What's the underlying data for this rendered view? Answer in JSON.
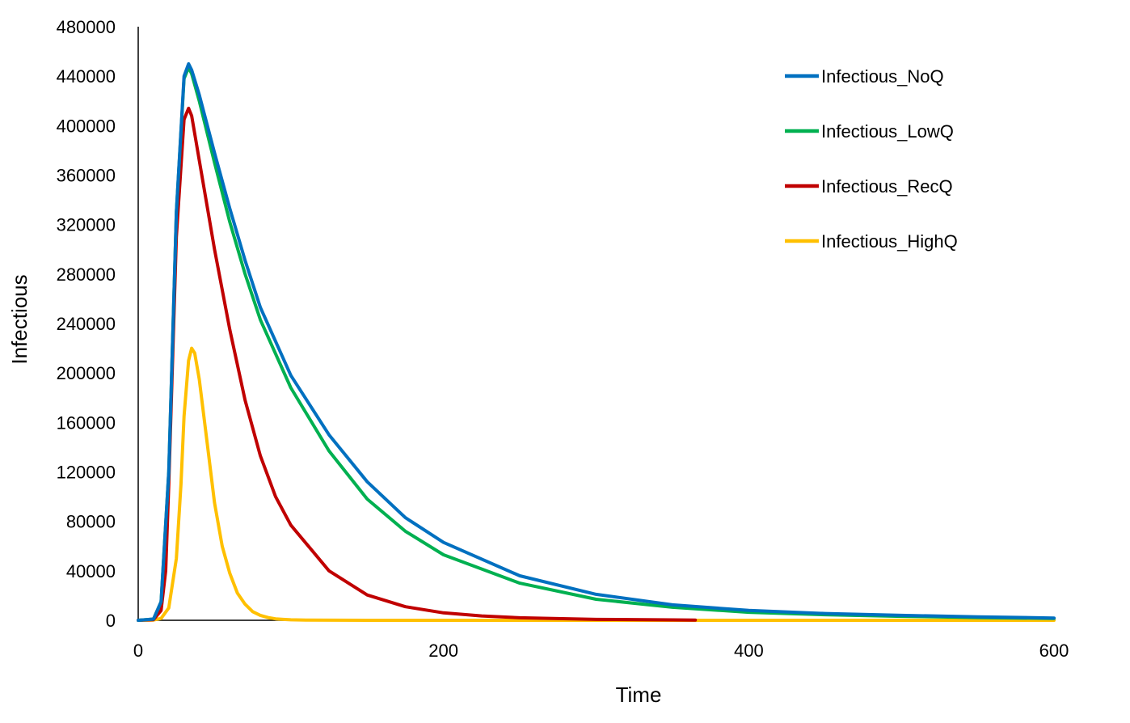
{
  "chart_data": {
    "type": "line",
    "title": "",
    "xlabel": "Time",
    "ylabel": "Infectious",
    "xlim": [
      0,
      600
    ],
    "ylim": [
      0,
      480000
    ],
    "xticks": [
      0,
      200,
      400,
      600
    ],
    "yticks": [
      0,
      40000,
      80000,
      120000,
      160000,
      200000,
      240000,
      280000,
      320000,
      360000,
      400000,
      440000,
      480000
    ],
    "grid": false,
    "legend_position": "top-right",
    "series": [
      {
        "name": "Infectious_NoQ",
        "color": "#0070C0",
        "x": [
          0,
          10,
          15,
          20,
          25,
          30,
          33,
          35,
          40,
          50,
          60,
          70,
          80,
          100,
          125,
          150,
          175,
          200,
          250,
          300,
          350,
          400,
          450,
          500,
          550,
          600
        ],
        "y": [
          0,
          1000,
          15000,
          120000,
          330000,
          440000,
          450000,
          445000,
          425000,
          378000,
          333000,
          291000,
          253000,
          198000,
          150000,
          112000,
          83000,
          63000,
          36000,
          21000,
          12500,
          8000,
          5500,
          4000,
          2800,
          1800
        ]
      },
      {
        "name": "Infectious_LowQ",
        "color": "#00B050",
        "x": [
          0,
          10,
          15,
          20,
          25,
          30,
          33,
          35,
          40,
          50,
          60,
          70,
          80,
          100,
          125,
          150,
          175,
          200,
          250,
          300,
          350,
          400,
          450,
          500,
          550,
          600
        ],
        "y": [
          0,
          1000,
          15000,
          120000,
          330000,
          438000,
          447000,
          442000,
          420000,
          370000,
          322000,
          280000,
          243000,
          188000,
          137000,
          98000,
          72000,
          53000,
          30000,
          17000,
          10500,
          6500,
          4500,
          3200,
          2200,
          1500
        ]
      },
      {
        "name": "Infectious_RecQ",
        "color": "#C00000",
        "x": [
          0,
          10,
          15,
          18,
          20,
          25,
          30,
          33,
          35,
          40,
          50,
          60,
          70,
          80,
          90,
          100,
          125,
          150,
          175,
          200,
          225,
          250,
          300,
          350,
          365
        ],
        "y": [
          0,
          500,
          8000,
          40000,
          110000,
          310000,
          405000,
          414000,
          408000,
          372000,
          300000,
          235000,
          178000,
          133000,
          100000,
          77000,
          40000,
          20500,
          11000,
          6000,
          3500,
          2000,
          700,
          300,
          200
        ]
      },
      {
        "name": "Infectious_HighQ",
        "color": "#FFC000",
        "x": [
          0,
          10,
          15,
          20,
          25,
          28,
          30,
          33,
          35,
          37,
          40,
          45,
          50,
          55,
          60,
          65,
          70,
          75,
          80,
          85,
          90,
          95,
          100,
          110,
          150,
          200,
          300,
          400,
          500,
          600
        ],
        "y": [
          0,
          200,
          1500,
          10000,
          50000,
          110000,
          165000,
          210000,
          220000,
          216000,
          195000,
          145000,
          95000,
          60000,
          38000,
          22000,
          13000,
          7000,
          4000,
          2200,
          1200,
          700,
          400,
          100,
          0,
          0,
          0,
          0,
          0,
          0
        ]
      }
    ]
  }
}
